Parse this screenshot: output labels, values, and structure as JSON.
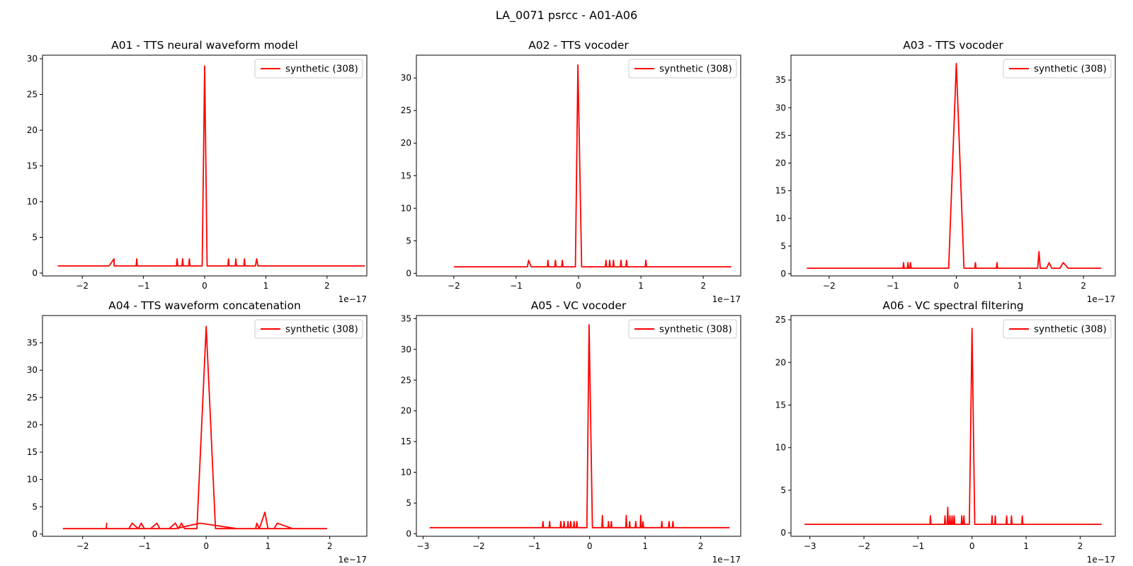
{
  "figure": {
    "suptitle": "LA_0071 psrcc - A01-A06"
  },
  "colors": {
    "line": "#ff0000",
    "axes": "#000000",
    "legend_border": "#cccccc"
  },
  "chart_data": [
    {
      "type": "line",
      "title": "A01 - TTS neural waveform model",
      "offset_label": "1e−17",
      "xlim": [
        -2.65,
        2.65
      ],
      "ylim": [
        -0.4,
        30.5
      ],
      "xticks": [
        -2,
        -1,
        0,
        1,
        2
      ],
      "yticks": [
        0,
        5,
        10,
        15,
        20,
        25,
        30
      ],
      "legend_position": "upper right",
      "series": [
        {
          "name": "synthetic (308)",
          "color": "#ff0000",
          "x": [
            -2.4,
            -1.56,
            -1.48,
            -1.48,
            -1.12,
            -1.11,
            -1.1,
            -0.46,
            -0.45,
            -0.44,
            -0.37,
            -0.36,
            -0.35,
            -0.26,
            -0.25,
            -0.24,
            -0.04,
            0.0,
            0.04,
            0.38,
            0.39,
            0.4,
            0.5,
            0.51,
            0.52,
            0.64,
            0.65,
            0.66,
            0.83,
            0.85,
            0.87,
            2.62
          ],
          "y": [
            1,
            1,
            2,
            1,
            1,
            2,
            1,
            1,
            2,
            1,
            1,
            2,
            1,
            1,
            2,
            1,
            1,
            29,
            1,
            1,
            2,
            1,
            1,
            2,
            1,
            1,
            2,
            1,
            1,
            2,
            1,
            1
          ]
        }
      ]
    },
    {
      "type": "line",
      "title": "A02 - TTS vocoder",
      "offset_label": "1e−17",
      "xlim": [
        -2.6,
        2.6
      ],
      "ylim": [
        -0.4,
        33.5
      ],
      "xticks": [
        -2,
        -1,
        0,
        1,
        2
      ],
      "yticks": [
        0,
        5,
        10,
        15,
        20,
        25,
        30
      ],
      "legend_position": "upper right",
      "series": [
        {
          "name": "synthetic (308)",
          "color": "#ff0000",
          "x": [
            -2.0,
            -0.82,
            -0.8,
            -0.76,
            -0.5,
            -0.49,
            -0.48,
            -0.38,
            -0.37,
            -0.36,
            -0.27,
            -0.26,
            -0.25,
            -0.05,
            -0.01,
            0.05,
            0.43,
            0.44,
            0.45,
            0.49,
            0.5,
            0.51,
            0.55,
            0.56,
            0.57,
            0.67,
            0.68,
            0.69,
            0.76,
            0.77,
            0.78,
            1.07,
            1.08,
            1.09,
            2.45
          ],
          "y": [
            1,
            1,
            2,
            1,
            1,
            2,
            1,
            1,
            2,
            1,
            1,
            2,
            1,
            1,
            32,
            1,
            1,
            2,
            1,
            1,
            2,
            1,
            1,
            2,
            1,
            1,
            2,
            1,
            1,
            2,
            1,
            1,
            2,
            1,
            1
          ]
        }
      ]
    },
    {
      "type": "line",
      "title": "A03 - TTS vocoder",
      "offset_label": "1e−17",
      "xlim": [
        -2.6,
        2.5
      ],
      "ylim": [
        -0.4,
        39.5
      ],
      "xticks": [
        -2,
        -1,
        0,
        1,
        2
      ],
      "yticks": [
        0,
        5,
        10,
        15,
        20,
        25,
        30,
        35
      ],
      "legend_position": "upper right",
      "series": [
        {
          "name": "synthetic (308)",
          "color": "#ff0000",
          "x": [
            -2.35,
            -0.84,
            -0.83,
            -0.82,
            -0.77,
            -0.76,
            -0.75,
            -0.73,
            -0.72,
            -0.71,
            -0.12,
            0.0,
            0.12,
            0.29,
            0.3,
            0.31,
            0.63,
            0.64,
            0.65,
            1.28,
            1.3,
            1.32,
            1.42,
            1.46,
            1.5,
            1.63,
            1.68,
            1.76,
            2.28
          ],
          "y": [
            1,
            1,
            2,
            1,
            1,
            2,
            1,
            1,
            2,
            1,
            1,
            38,
            1,
            1,
            2,
            1,
            1,
            2,
            1,
            1,
            4,
            1,
            1,
            2,
            1,
            1,
            2,
            1,
            1
          ]
        }
      ]
    },
    {
      "type": "line",
      "title": "A04 - TTS waveform concatenation",
      "offset_label": "1e−17",
      "xlim": [
        -2.65,
        2.6
      ],
      "ylim": [
        -0.4,
        40.0
      ],
      "xticks": [
        -2,
        -1,
        0,
        1,
        2
      ],
      "yticks": [
        0,
        5,
        10,
        15,
        20,
        25,
        30,
        35
      ],
      "legend_position": "upper right",
      "series": [
        {
          "name": "synthetic (308)",
          "color": "#ff0000",
          "x": [
            -2.32,
            -1.62,
            -1.61,
            -1.62,
            -1.25,
            -1.2,
            -1.1,
            -1.05,
            -1.0,
            -0.9,
            -0.8,
            -0.75,
            -0.6,
            -0.5,
            -0.45,
            -0.4,
            -0.35,
            -0.15,
            0.0,
            0.15,
            0.8,
            0.82,
            0.86,
            0.95,
            1.0,
            1.1,
            1.15,
            1.4,
            1.95,
            1.92,
            0.5,
            -0.1,
            -0.5,
            -1.0,
            -1.5,
            -2.15
          ],
          "y": [
            1,
            1,
            2,
            1,
            1,
            2,
            1,
            2,
            1,
            1,
            2,
            1,
            1,
            2,
            1,
            2,
            1,
            1,
            38,
            1,
            1,
            2,
            1,
            4,
            1,
            1,
            2,
            1,
            1,
            1,
            1,
            2,
            1,
            1,
            1,
            1
          ]
        }
      ]
    },
    {
      "type": "line",
      "title": "A05 - VC vocoder",
      "offset_label": "1e−17",
      "xlim": [
        -3.12,
        2.72
      ],
      "ylim": [
        -0.4,
        35.5
      ],
      "xticks": [
        -3,
        -2,
        -1,
        0,
        1,
        2
      ],
      "yticks": [
        0,
        5,
        10,
        15,
        20,
        25,
        30,
        35
      ],
      "legend_position": "upper right",
      "series": [
        {
          "name": "synthetic (308)",
          "color": "#ff0000",
          "x": [
            -2.88,
            -0.85,
            -0.84,
            -0.83,
            -0.73,
            -0.72,
            -0.71,
            -0.53,
            -0.52,
            -0.51,
            -0.47,
            -0.46,
            -0.45,
            -0.4,
            -0.39,
            -0.38,
            -0.35,
            -0.34,
            -0.33,
            -0.29,
            -0.28,
            -0.27,
            -0.24,
            -0.23,
            -0.22,
            -0.05,
            -0.01,
            0.05,
            0.22,
            0.23,
            0.24,
            0.33,
            0.34,
            0.35,
            0.38,
            0.39,
            0.4,
            0.65,
            0.66,
            0.67,
            0.71,
            0.72,
            0.73,
            0.82,
            0.83,
            0.84,
            0.91,
            0.92,
            0.93,
            0.95,
            0.96,
            0.97,
            1.29,
            1.3,
            1.31,
            1.42,
            1.43,
            1.44,
            1.49,
            1.5,
            1.51,
            2.52
          ],
          "y": [
            1,
            1,
            2,
            1,
            1,
            2,
            1,
            1,
            2,
            1,
            1,
            2,
            1,
            1,
            2,
            1,
            1,
            2,
            1,
            1,
            2,
            1,
            1,
            2,
            1,
            1,
            34,
            1,
            1,
            3,
            1,
            1,
            2,
            1,
            1,
            2,
            1,
            1,
            3,
            1,
            1,
            2,
            1,
            1,
            2,
            1,
            1,
            3,
            1,
            1,
            2,
            1,
            1,
            2,
            1,
            1,
            2,
            1,
            1,
            2,
            1,
            1
          ]
        }
      ]
    },
    {
      "type": "line",
      "title": "A06 - VC spectral filtering",
      "offset_label": "1e−17",
      "xlim": [
        -3.35,
        2.65
      ],
      "ylim": [
        -0.4,
        25.5
      ],
      "xticks": [
        -3,
        -2,
        -1,
        0,
        1,
        2
      ],
      "yticks": [
        0,
        5,
        10,
        15,
        20,
        25
      ],
      "legend_position": "upper right",
      "series": [
        {
          "name": "synthetic (308)",
          "color": "#ff0000",
          "x": [
            -3.1,
            -0.78,
            -0.77,
            -0.76,
            -0.51,
            -0.5,
            -0.49,
            -0.46,
            -0.45,
            -0.44,
            -0.42,
            -0.41,
            -0.4,
            -0.38,
            -0.37,
            -0.36,
            -0.34,
            -0.33,
            -0.32,
            -0.2,
            -0.19,
            -0.18,
            -0.16,
            -0.15,
            -0.14,
            -0.05,
            0.0,
            0.05,
            0.36,
            0.37,
            0.38,
            0.42,
            0.43,
            0.44,
            0.63,
            0.64,
            0.65,
            0.72,
            0.73,
            0.74,
            0.92,
            0.93,
            0.94,
            2.4
          ],
          "y": [
            1,
            1,
            2,
            1,
            1,
            2,
            1,
            1,
            3,
            1,
            1,
            2,
            1,
            1,
            2,
            1,
            1,
            2,
            1,
            1,
            2,
            1,
            1,
            2,
            1,
            1,
            24,
            1,
            1,
            2,
            1,
            1,
            2,
            1,
            1,
            2,
            1,
            1,
            2,
            1,
            1,
            2,
            1,
            1
          ]
        }
      ]
    }
  ]
}
